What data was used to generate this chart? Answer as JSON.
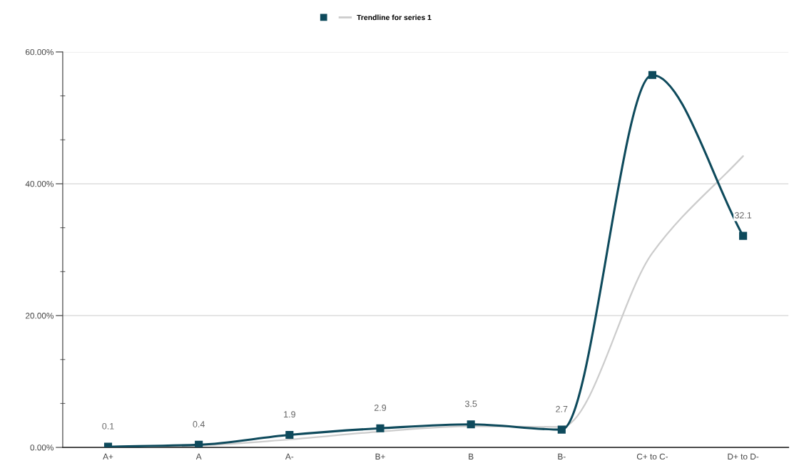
{
  "chart_data": {
    "type": "line",
    "categories": [
      "A+",
      "A",
      "A-",
      "B+",
      "B",
      "B-",
      "C+ to C-",
      "D+ to D-"
    ],
    "series": [
      {
        "color": "#0e4a5c",
        "values": [
          0.1,
          0.4,
          1.9,
          2.9,
          3.5,
          2.7,
          56.5,
          32.1
        ],
        "value_labels": [
          "0.1",
          "0.4",
          "1.9",
          "2.9",
          "3.5",
          "2.7",
          null,
          "32.1"
        ]
      },
      {
        "name": "Trendline for series 1",
        "color": "#cccccc",
        "values": [
          0.1,
          0.3,
          1.2,
          2.4,
          3.2,
          3.1,
          29.5,
          44.2
        ],
        "marker": "none"
      }
    ],
    "ylim": [
      0,
      60
    ],
    "yticks": [
      {
        "value": 0,
        "label": "0.00%"
      },
      {
        "value": 6.67,
        "label": null
      },
      {
        "value": 13.33,
        "label": null
      },
      {
        "value": 20,
        "label": "20.00%"
      },
      {
        "value": 26.67,
        "label": null
      },
      {
        "value": 33.33,
        "label": null
      },
      {
        "value": 40,
        "label": "40.00%"
      },
      {
        "value": 46.67,
        "label": null
      },
      {
        "value": 53.33,
        "label": null
      },
      {
        "value": 60,
        "label": "60.00%"
      }
    ],
    "grid": "y",
    "legend": "top",
    "marker": "square",
    "line_style": "solid"
  }
}
